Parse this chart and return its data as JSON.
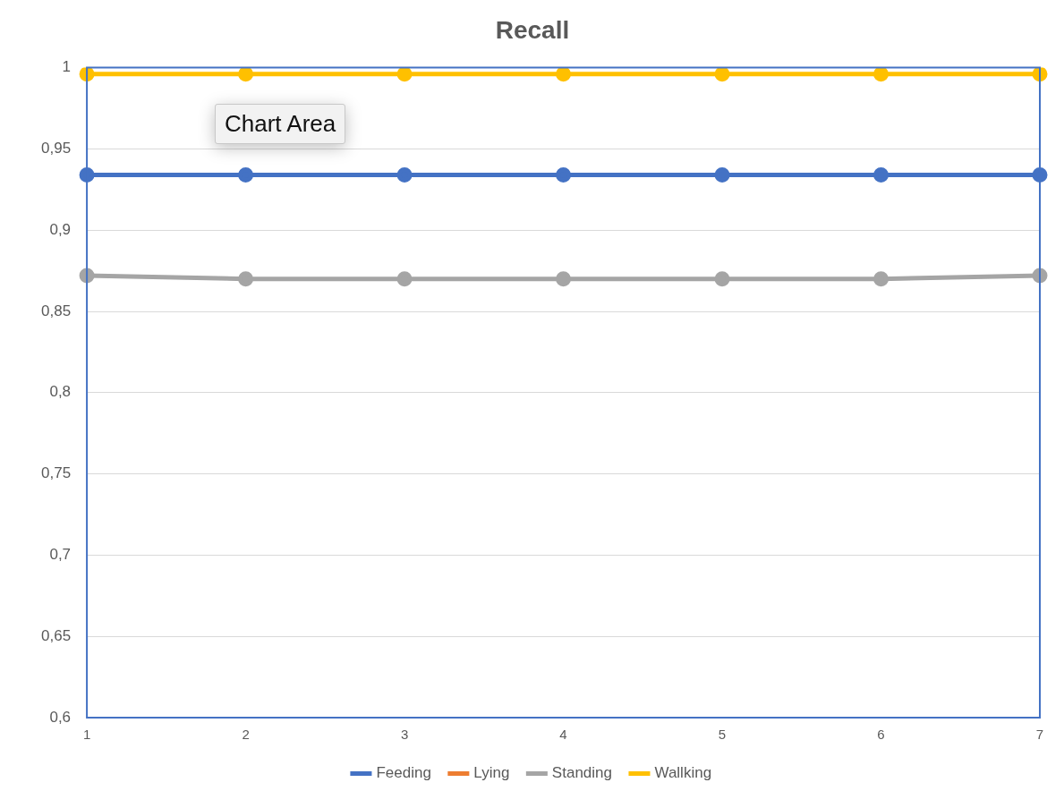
{
  "chart_data": {
    "type": "line",
    "title": "Recall",
    "categories": [
      "1",
      "2",
      "3",
      "4",
      "5",
      "6",
      "7"
    ],
    "series": [
      {
        "name": "Feeding",
        "color": "#4472c4",
        "values": [
          0.934,
          0.934,
          0.934,
          0.934,
          0.934,
          0.934,
          0.934
        ]
      },
      {
        "name": "Lying",
        "color": "#ed7d31",
        "values": [
          null,
          null,
          null,
          null,
          null,
          null,
          null
        ]
      },
      {
        "name": "Standing",
        "color": "#a5a5a5",
        "values": [
          0.872,
          0.87,
          0.87,
          0.87,
          0.87,
          0.87,
          0.872
        ]
      },
      {
        "name": "Wallking",
        "color": "#ffc000",
        "values": [
          0.996,
          0.996,
          0.996,
          0.996,
          0.996,
          0.996,
          0.996
        ]
      }
    ],
    "ylim": [
      0.6,
      1
    ],
    "yticks": [
      {
        "value": 0.6,
        "label": "0,6"
      },
      {
        "value": 0.65,
        "label": "0,65"
      },
      {
        "value": 0.7,
        "label": "0,7"
      },
      {
        "value": 0.75,
        "label": "0,75"
      },
      {
        "value": 0.8,
        "label": "0,8"
      },
      {
        "value": 0.85,
        "label": "0,85"
      },
      {
        "value": 0.9,
        "label": "0,9"
      },
      {
        "value": 0.95,
        "label": "0,95"
      },
      {
        "value": 1,
        "label": "1"
      }
    ],
    "grid": "y",
    "legend": "bottom",
    "marker": "circle",
    "line_style": "solid",
    "annotations": [
      "Chart Area"
    ]
  }
}
